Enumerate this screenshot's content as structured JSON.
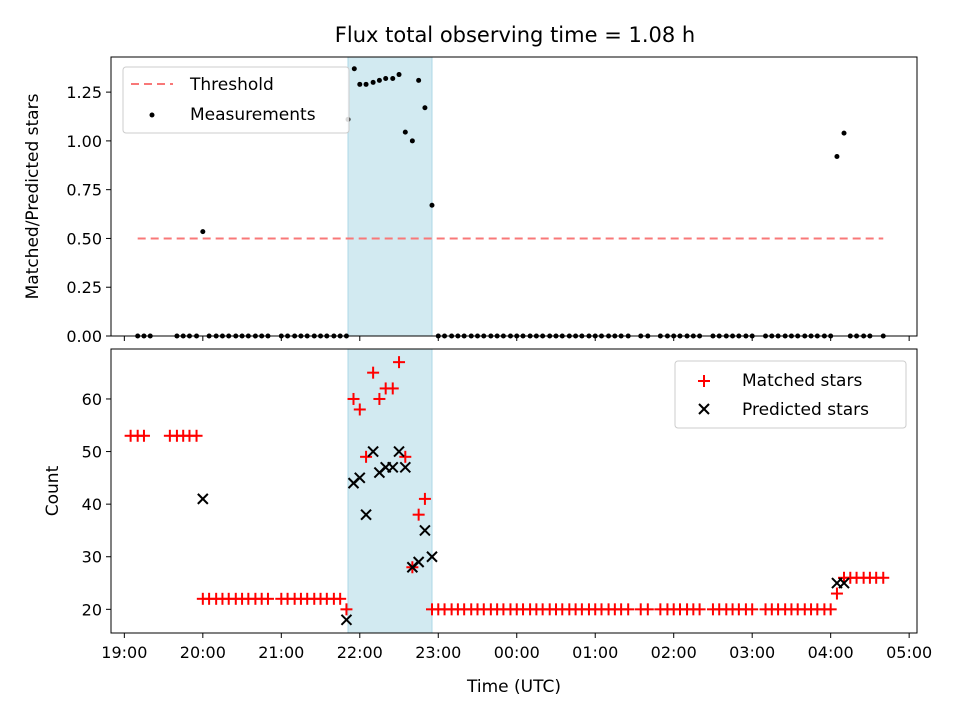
{
  "title": "Flux total observing time = 1.08 h",
  "chart_data": [
    {
      "type": "scatter",
      "panel": "top",
      "ylabel": "Matched/Predicted stars",
      "ylim": [
        0,
        1.43
      ],
      "yticks": [
        "0.00",
        "0.25",
        "0.50",
        "0.75",
        "1.00",
        "1.25"
      ],
      "yticks_values": [
        0,
        0.25,
        0.5,
        0.75,
        1.0,
        1.25
      ],
      "legend_position": "top-left",
      "threshold": {
        "name": "Threshold",
        "value": 0.5,
        "x_start": 19.17,
        "x_end": 28.67,
        "color": "#f87878"
      },
      "series": [
        {
          "name": "Measurements",
          "color": "#000000",
          "x": [
            19.17,
            19.25,
            19.33,
            19.67,
            19.75,
            19.83,
            19.92,
            20.0,
            20.08,
            20.17,
            20.25,
            20.33,
            20.42,
            20.5,
            20.58,
            20.67,
            20.75,
            20.83,
            21.0,
            21.08,
            21.17,
            21.25,
            21.33,
            21.42,
            21.5,
            21.58,
            21.67,
            21.75,
            21.83,
            21.85,
            21.93,
            22.0,
            22.08,
            22.17,
            22.25,
            22.33,
            22.42,
            22.5,
            22.58,
            22.67,
            22.75,
            22.83,
            22.92,
            23.0,
            23.08,
            23.17,
            23.25,
            23.33,
            23.42,
            23.5,
            23.58,
            23.67,
            23.75,
            23.83,
            23.92,
            24.0,
            24.08,
            24.17,
            24.25,
            24.33,
            24.42,
            24.5,
            24.58,
            24.67,
            24.75,
            24.83,
            24.92,
            25.0,
            25.08,
            25.17,
            25.25,
            25.33,
            25.42,
            25.58,
            25.67,
            25.83,
            25.92,
            26.0,
            26.08,
            26.17,
            26.25,
            26.33,
            26.5,
            26.58,
            26.67,
            26.75,
            26.83,
            26.92,
            27.0,
            27.17,
            27.25,
            27.33,
            27.42,
            27.5,
            27.58,
            27.67,
            27.75,
            27.83,
            27.92,
            28.0,
            28.08,
            28.17,
            28.25,
            28.33,
            28.42,
            28.5,
            28.67
          ],
          "y": [
            0,
            0,
            0,
            0,
            0,
            0,
            0,
            0.535,
            0,
            0,
            0,
            0,
            0,
            0,
            0,
            0,
            0,
            0,
            0,
            0,
            0,
            0,
            0,
            0,
            0,
            0,
            0,
            0,
            0,
            1.11,
            1.37,
            1.29,
            1.29,
            1.3,
            1.31,
            1.32,
            1.32,
            1.34,
            1.045,
            1.0,
            1.31,
            1.17,
            0.67,
            0,
            0,
            0,
            0,
            0,
            0,
            0,
            0,
            0,
            0,
            0,
            0,
            0,
            0,
            0,
            0,
            0,
            0,
            0,
            0,
            0,
            0,
            0,
            0,
            0,
            0,
            0,
            0,
            0,
            0,
            0,
            0,
            0,
            0,
            0,
            0,
            0,
            0,
            0,
            0,
            0,
            0,
            0,
            0,
            0,
            0,
            0,
            0,
            0,
            0,
            0,
            0,
            0,
            0,
            0,
            0,
            0,
            0.92,
            1.04,
            0,
            0,
            0,
            0,
            0
          ]
        }
      ]
    },
    {
      "type": "scatter",
      "panel": "bottom",
      "xlabel": "Time (UTC)",
      "ylabel": "Count",
      "ylim": [
        15.5,
        69.5
      ],
      "yticks": [
        "20",
        "30",
        "40",
        "50",
        "60"
      ],
      "yticks_values": [
        20,
        30,
        40,
        50,
        60
      ],
      "xlim": [
        18.83,
        29.1
      ],
      "xticks": [
        "19:00",
        "20:00",
        "21:00",
        "22:00",
        "23:00",
        "00:00",
        "01:00",
        "02:00",
        "03:00",
        "04:00",
        "05:00"
      ],
      "xticks_values": [
        19,
        20,
        21,
        22,
        23,
        24,
        25,
        26,
        27,
        28,
        29
      ],
      "legend_position": "top-right",
      "series": [
        {
          "name": "Matched stars",
          "color": "#ff0000",
          "marker": "plus",
          "x": [
            19.08,
            19.17,
            19.25,
            19.58,
            19.67,
            19.75,
            19.83,
            19.92,
            20.0,
            20.08,
            20.17,
            20.25,
            20.33,
            20.42,
            20.5,
            20.58,
            20.67,
            20.75,
            20.83,
            21.0,
            21.08,
            21.17,
            21.25,
            21.33,
            21.42,
            21.5,
            21.58,
            21.67,
            21.75,
            21.83,
            21.92,
            22.0,
            22.08,
            22.17,
            22.25,
            22.33,
            22.42,
            22.5,
            22.58,
            22.67,
            22.75,
            22.83,
            22.92,
            23.0,
            23.08,
            23.17,
            23.25,
            23.33,
            23.42,
            23.5,
            23.58,
            23.67,
            23.75,
            23.83,
            23.92,
            24.0,
            24.08,
            24.17,
            24.25,
            24.33,
            24.42,
            24.5,
            24.58,
            24.67,
            24.75,
            24.83,
            24.92,
            25.0,
            25.08,
            25.17,
            25.25,
            25.33,
            25.42,
            25.58,
            25.67,
            25.83,
            25.92,
            26.0,
            26.08,
            26.17,
            26.25,
            26.33,
            26.5,
            26.58,
            26.67,
            26.75,
            26.83,
            26.92,
            27.0,
            27.17,
            27.25,
            27.33,
            27.42,
            27.5,
            27.58,
            27.67,
            27.75,
            27.83,
            27.92,
            28.0,
            28.08,
            28.17,
            28.25,
            28.33,
            28.42,
            28.5,
            28.58,
            28.67
          ],
          "y": [
            53,
            53,
            53,
            53,
            53,
            53,
            53,
            53,
            22,
            22,
            22,
            22,
            22,
            22,
            22,
            22,
            22,
            22,
            22,
            22,
            22,
            22,
            22,
            22,
            22,
            22,
            22,
            22,
            22,
            20,
            60,
            58,
            49,
            65,
            60,
            62,
            62,
            67,
            49,
            28,
            38,
            41,
            20,
            20,
            20,
            20,
            20,
            20,
            20,
            20,
            20,
            20,
            20,
            20,
            20,
            20,
            20,
            20,
            20,
            20,
            20,
            20,
            20,
            20,
            20,
            20,
            20,
            20,
            20,
            20,
            20,
            20,
            20,
            20,
            20,
            20,
            20,
            20,
            20,
            20,
            20,
            20,
            20,
            20,
            20,
            20,
            20,
            20,
            20,
            20,
            20,
            20,
            20,
            20,
            20,
            20,
            20,
            20,
            20,
            20,
            23,
            26,
            26,
            26,
            26,
            26,
            26,
            26
          ]
        },
        {
          "name": "Predicted stars",
          "color": "#000000",
          "marker": "x",
          "x": [
            20.0,
            21.83,
            21.92,
            22.0,
            22.08,
            22.17,
            22.25,
            22.33,
            22.42,
            22.5,
            22.58,
            22.67,
            22.75,
            22.83,
            22.92,
            28.08,
            28.17
          ],
          "y": [
            41,
            18,
            44,
            45,
            38,
            50,
            46,
            47,
            47,
            50,
            47,
            28,
            29,
            35,
            30,
            25,
            25
          ]
        }
      ]
    }
  ],
  "shaded_region": {
    "x_start": 21.85,
    "x_end": 22.92,
    "color": "#add8e6"
  }
}
